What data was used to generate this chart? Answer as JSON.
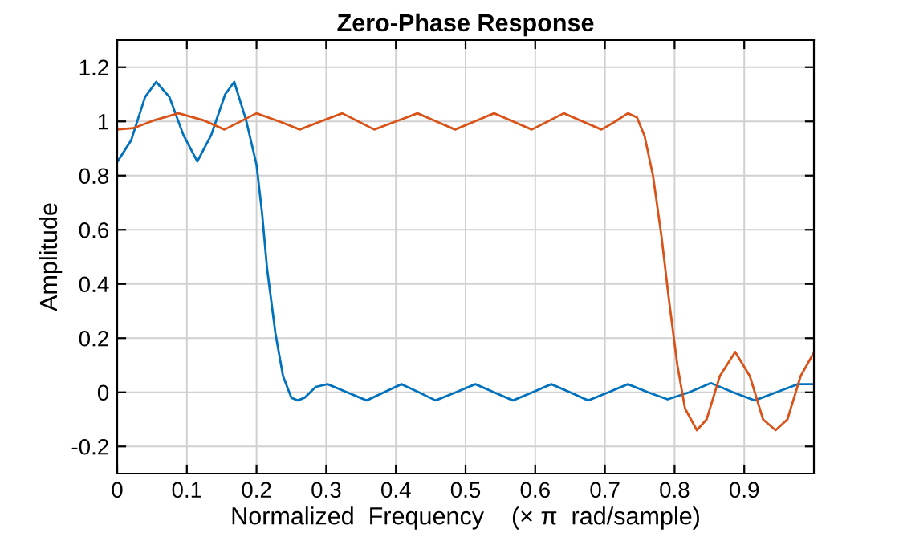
{
  "chart_data": {
    "type": "line",
    "title": "Zero-Phase Response",
    "xlabel": "Normalized  Frequency    (× π  rad/sample)",
    "ylabel": "Amplitude",
    "xlim": [
      0,
      1
    ],
    "ylim": [
      -0.3,
      1.3
    ],
    "xticks": [
      0,
      0.1,
      0.2,
      0.3,
      0.4,
      0.5,
      0.6,
      0.7,
      0.8,
      0.9
    ],
    "yticks": [
      -0.2,
      0,
      0.2,
      0.4,
      0.6,
      0.8,
      1,
      1.2
    ],
    "grid": true,
    "line_style": "solid",
    "series": [
      {
        "color": "#0072bd",
        "x": [
          0,
          0.02,
          0.04,
          0.056,
          0.075,
          0.095,
          0.115,
          0.135,
          0.155,
          0.168,
          0.185,
          0.2,
          0.208,
          0.215,
          0.227,
          0.238,
          0.25,
          0.259,
          0.269,
          0.285,
          0.302,
          0.33,
          0.358,
          0.383,
          0.408,
          0.433,
          0.457,
          0.486,
          0.514,
          0.541,
          0.568,
          0.596,
          0.623,
          0.65,
          0.676,
          0.705,
          0.733,
          0.762,
          0.79,
          0.821,
          0.852,
          0.884,
          0.915,
          0.946,
          0.977,
          1.0
        ],
        "values": [
          0.85,
          0.93,
          1.09,
          1.146,
          1.09,
          0.95,
          0.852,
          0.95,
          1.1,
          1.146,
          1.005,
          0.84,
          0.66,
          0.46,
          0.22,
          0.06,
          -0.02,
          -0.03,
          -0.02,
          0.02,
          0.03,
          0,
          -0.03,
          0,
          0.03,
          0,
          -0.03,
          0,
          0.03,
          0,
          -0.03,
          0,
          0.03,
          0,
          -0.03,
          0,
          0.03,
          0,
          -0.026,
          0,
          0.034,
          0,
          -0.03,
          0,
          0.03,
          0.03
        ]
      },
      {
        "color": "#d95319",
        "x": [
          0,
          0.023,
          0.054,
          0.088,
          0.123,
          0.154,
          0.2,
          0.238,
          0.262,
          0.292,
          0.323,
          0.346,
          0.369,
          0.4,
          0.431,
          0.458,
          0.485,
          0.513,
          0.541,
          0.568,
          0.595,
          0.618,
          0.641,
          0.668,
          0.695,
          0.715,
          0.733,
          0.746,
          0.757,
          0.769,
          0.781,
          0.792,
          0.804,
          0.815,
          0.832,
          0.846,
          0.865,
          0.887,
          0.908,
          0.927,
          0.945,
          0.962,
          0.981,
          1.0
        ],
        "values": [
          0.97,
          0.975,
          1.005,
          1.03,
          1.005,
          0.97,
          1.03,
          0.995,
          0.97,
          1.0,
          1.03,
          1.0,
          0.97,
          1.0,
          1.03,
          1.0,
          0.97,
          1.0,
          1.03,
          1.0,
          0.97,
          1.0,
          1.03,
          1.0,
          0.97,
          1.0,
          1.03,
          1.015,
          0.945,
          0.8,
          0.58,
          0.34,
          0.1,
          -0.06,
          -0.14,
          -0.1,
          0.06,
          0.149,
          0.06,
          -0.1,
          -0.14,
          -0.1,
          0.06,
          0.147
        ]
      }
    ]
  }
}
